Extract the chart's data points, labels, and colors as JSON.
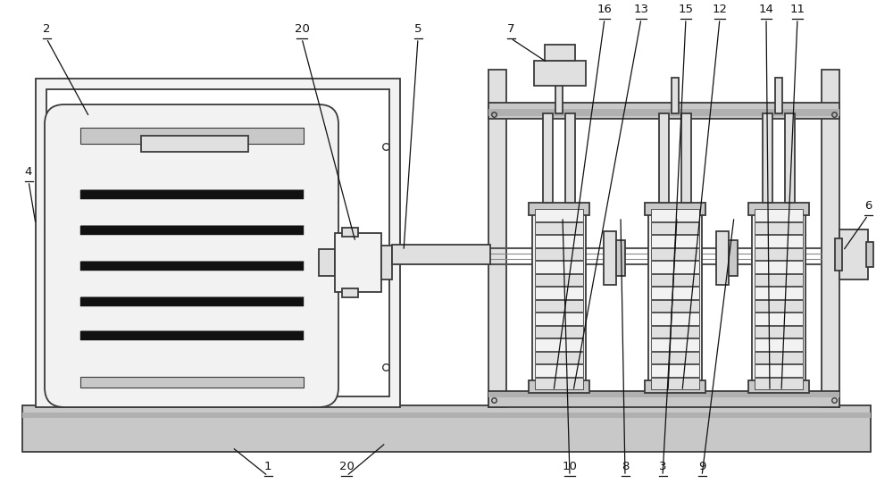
{
  "bg": "#ffffff",
  "lc": "#3a3a3a",
  "lw": 1.3,
  "fc_white": "#ffffff",
  "fc_light": "#f2f2f2",
  "fc_mid": "#e0e0e0",
  "fc_dark": "#c8c8c8",
  "fc_darker": "#b0b0b0",
  "fc_black": "#111111"
}
